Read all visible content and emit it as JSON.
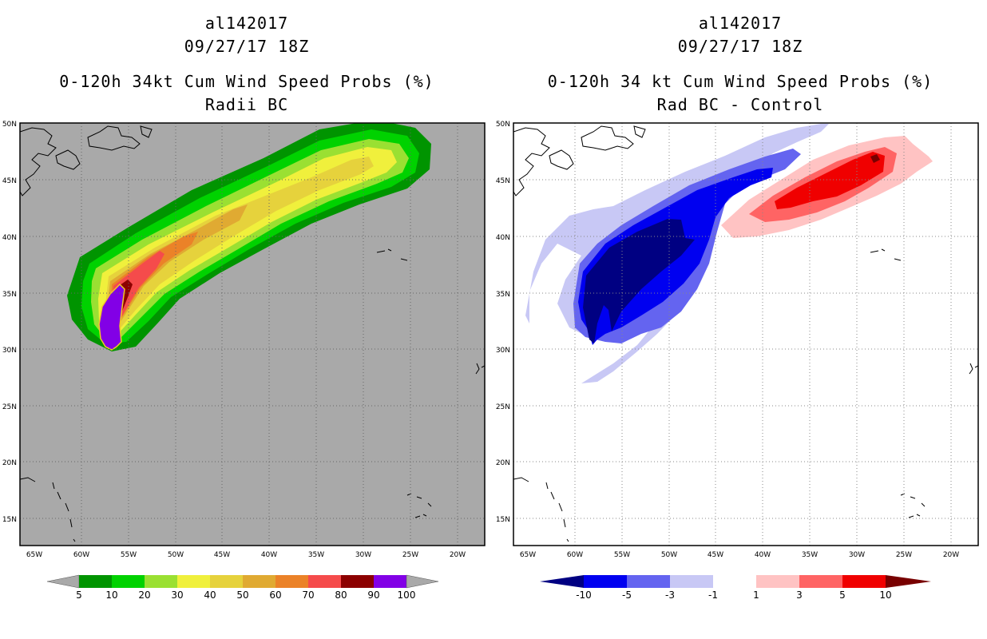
{
  "left_panel": {
    "titles": [
      "al142017",
      "09/27/17 18Z",
      "0-120h 34kt Cum Wind Speed Probs (%)",
      "Radii BC"
    ],
    "background_color": "#a9a9a9",
    "colorbar": {
      "labels": [
        "5",
        "10",
        "20",
        "30",
        "40",
        "50",
        "60",
        "70",
        "80",
        "90",
        "100"
      ],
      "colors": [
        "#009400",
        "#00d200",
        "#9ae032",
        "#f0f03c",
        "#e6d23c",
        "#e0aa32",
        "#eb8228",
        "#f54b4b",
        "#8c0000",
        "#8200e6"
      ],
      "extend_color": "#a9a9a9"
    }
  },
  "right_panel": {
    "titles": [
      "al142017",
      "09/27/17 18Z",
      "0-120h 34 kt Cum Wind Speed Probs (%)",
      "Rad BC - Control"
    ],
    "background_color": "#ffffff",
    "colorbar": {
      "labels": [
        "-10",
        "-5",
        "-3",
        "-1",
        "1",
        "3",
        "5",
        "10"
      ],
      "colors": [
        "#000082",
        "#0000f0",
        "#6464f0",
        "#c8c8f5",
        "#ffffff",
        "#ffc3c3",
        "#ff6464",
        "#f00000",
        "#780000"
      ]
    }
  },
  "axes": {
    "lat_labels": [
      "50N",
      "45N",
      "40N",
      "35N",
      "30N",
      "25N",
      "20N",
      "15N"
    ],
    "lon_labels": [
      "65W",
      "60W",
      "55W",
      "50W",
      "45W",
      "40W",
      "35W",
      "30W",
      "25W",
      "20W"
    ]
  }
}
